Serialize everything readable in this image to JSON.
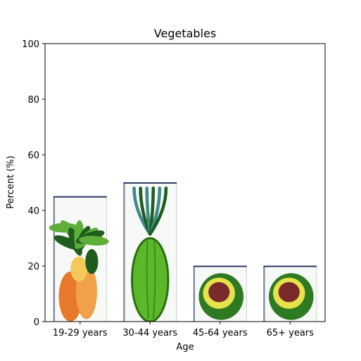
{
  "chart_data": {
    "type": "bar",
    "title": "Vegetables",
    "xlabel": "Age",
    "ylabel": "Percent (%)",
    "categories": [
      "19-29 years",
      "30-44 years",
      "45-64 years",
      "65+ years"
    ],
    "values": [
      45,
      50,
      20,
      20
    ],
    "ylim": [
      0,
      100
    ],
    "yticks": [
      0,
      20,
      40,
      60,
      80,
      100
    ],
    "grid": false,
    "legend": "none",
    "bar_images": [
      "vegetable-bouquet-icon",
      "green-squash-icon",
      "avocado-half-icon",
      "avocado-half-icon"
    ],
    "colors": {
      "leaf_dark": "#1f5d1f",
      "leaf_light": "#5fae3a",
      "squash": "#5cb82a",
      "squash_dark": "#2d6e14",
      "orange": "#e8782a",
      "avocado_flesh": "#e6e24a",
      "avocado_skin": "#2e7a22",
      "pit": "#7a2a2a",
      "frame": "#2b3a66"
    }
  }
}
